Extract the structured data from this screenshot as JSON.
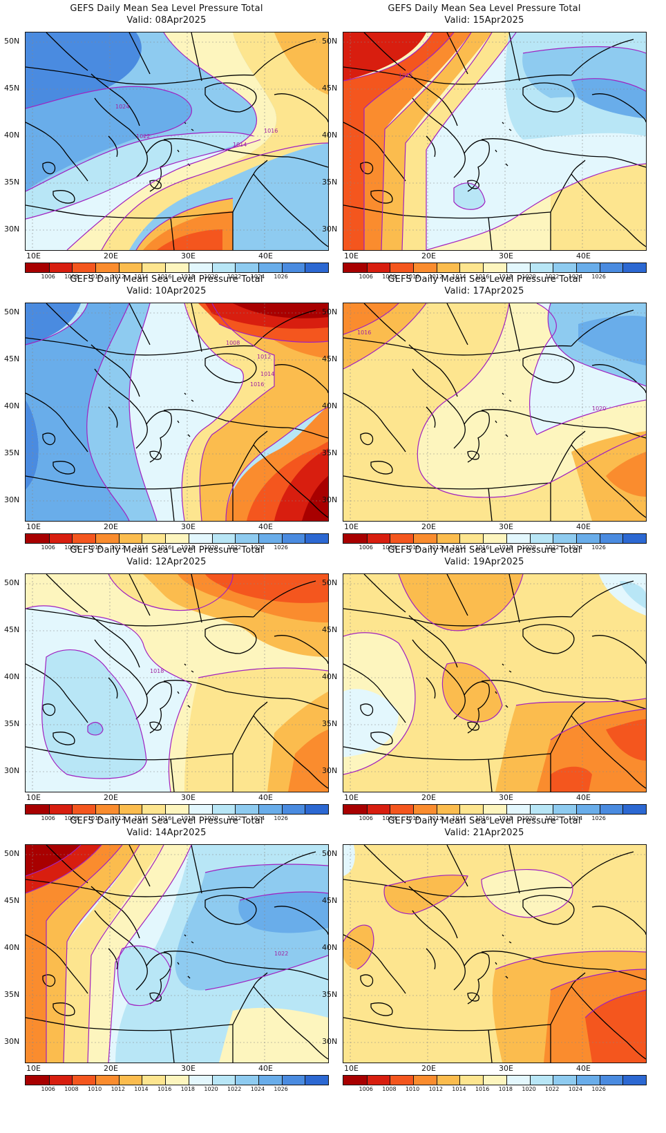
{
  "title_line1": "GEFS Daily Mean Sea Level Pressure Total",
  "lat_labels": [
    "50N",
    "45N",
    "40N",
    "35N",
    "30N"
  ],
  "lon_labels": [
    "10E",
    "20E",
    "30E",
    "40E"
  ],
  "colorbar": {
    "levels": [
      "1006",
      "1008",
      "1010",
      "1012",
      "1014",
      "1016",
      "1018",
      "1020",
      "1022",
      "1024",
      "1026"
    ],
    "colors": [
      "#a80000",
      "#d81e0f",
      "#f4561e",
      "#fa8c2e",
      "#fbbc4e",
      "#fde58f",
      "#fdf5be",
      "#e3f7fd",
      "#b8e6f6",
      "#8ecbf0",
      "#69adea",
      "#4a8be0",
      "#2c68d2"
    ]
  },
  "panels": [
    {
      "valid": "Valid: 08Apr2025",
      "labels": [
        {
          "text": "1024"
        },
        {
          "text": "1022"
        },
        {
          "text": "1016"
        },
        {
          "text": "1014"
        }
      ]
    },
    {
      "valid": "Valid: 15Apr2025",
      "labels": [
        {
          "text": "1012"
        }
      ]
    },
    {
      "valid": "Valid: 10Apr2025",
      "labels": [
        {
          "text": "1008"
        },
        {
          "text": "1012"
        },
        {
          "text": "1014"
        },
        {
          "text": "1016"
        }
      ]
    },
    {
      "valid": "Valid: 17Apr2025",
      "labels": [
        {
          "text": "1016"
        },
        {
          "text": "1020"
        }
      ]
    },
    {
      "valid": "Valid: 12Apr2025",
      "labels": [
        {
          "text": "1018"
        }
      ]
    },
    {
      "valid": "Valid: 19Apr2025",
      "labels": []
    },
    {
      "valid": "Valid: 14Apr2025",
      "labels": [
        {
          "text": "1022"
        }
      ]
    },
    {
      "valid": "Valid: 21Apr2025",
      "labels": []
    }
  ]
}
